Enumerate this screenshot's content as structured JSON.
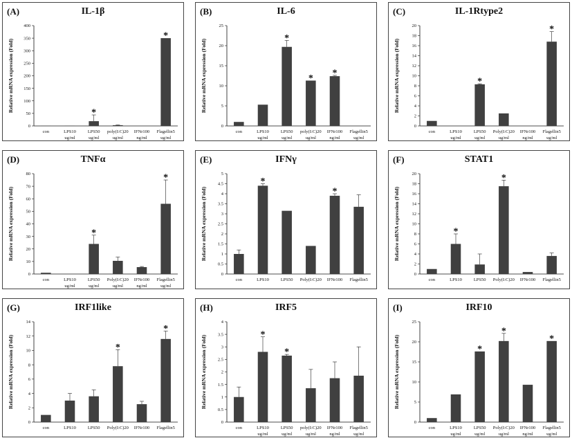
{
  "colors": {
    "bar": "#404040",
    "axis": "#111111",
    "frame": "#444444"
  },
  "chart_data": [
    {
      "type": "bar",
      "label": "(A)",
      "title": "IL-1β",
      "ylabel": "Relative mRNA expression (Fold)",
      "ylim": [
        0,
        400
      ],
      "yticks": [
        0,
        50,
        100,
        150,
        200,
        250,
        300,
        350,
        400
      ],
      "categories": [
        [
          "con"
        ],
        [
          "LPS10",
          "ug/ml"
        ],
        [
          "LPS50",
          "ug/ml"
        ],
        [
          "poly(I:C)20",
          "ug/ml"
        ],
        [
          "IFNr100",
          "ng/ml"
        ],
        [
          "Flagellin5",
          "ug/ml"
        ]
      ],
      "values": [
        0.5,
        0.8,
        19,
        3,
        0,
        350
      ],
      "errors": [
        0,
        0,
        25,
        1,
        0,
        0
      ],
      "significant": [
        false,
        false,
        true,
        false,
        false,
        true
      ]
    },
    {
      "type": "bar",
      "label": "(B)",
      "title": "IL-6",
      "ylabel": "Relative mRNA expression (Fold)",
      "ylim": [
        0,
        25
      ],
      "yticks": [
        0,
        5,
        10,
        15,
        20,
        25
      ],
      "categories": [
        [
          "con"
        ],
        [
          "LPS10",
          "ug/ml"
        ],
        [
          "LPS50",
          "ug/ml"
        ],
        [
          "poly(I:C)20",
          "ug/ml"
        ],
        [
          "IFNr100",
          "ng/ml"
        ],
        [
          "Flagellin5",
          "ug/ml"
        ]
      ],
      "values": [
        1,
        5.3,
        19.7,
        11.3,
        12.4,
        0
      ],
      "errors": [
        0,
        0,
        1.6,
        0,
        0.2,
        0
      ],
      "significant": [
        false,
        false,
        true,
        true,
        true,
        false
      ]
    },
    {
      "type": "bar",
      "label": "(C)",
      "title": "IL-1Rtype2",
      "ylabel": "Relative mRNA expression (Fold)",
      "ylim": [
        0,
        20
      ],
      "yticks": [
        0,
        2,
        4,
        6,
        8,
        10,
        12,
        14,
        16,
        18,
        20
      ],
      "categories": [
        [
          "con"
        ],
        [
          "LPS10",
          "ug/ml"
        ],
        [
          "LPS50",
          "ug/ml"
        ],
        [
          "Poly(I:C)20",
          "ug/ml"
        ],
        [
          "IFNr100",
          "ng/ml"
        ],
        [
          "Flagellin5",
          "ug/ml"
        ]
      ],
      "values": [
        1,
        0,
        8.3,
        2.5,
        0,
        16.8
      ],
      "errors": [
        0,
        0,
        0.1,
        0,
        0,
        2
      ],
      "significant": [
        false,
        false,
        true,
        false,
        false,
        true
      ]
    },
    {
      "type": "bar",
      "label": "(D)",
      "title": "TNFα",
      "ylabel": "Relative mRNA expression (Fold)",
      "ylim": [
        0,
        80
      ],
      "yticks": [
        0,
        10,
        20,
        30,
        40,
        50,
        60,
        70,
        80
      ],
      "categories": [
        [
          "con"
        ],
        [
          "LPS10",
          "ug/ml"
        ],
        [
          "LPS50",
          "ug/ml"
        ],
        [
          "Poly(I:C)20",
          "ug/ml"
        ],
        [
          "IFNr100",
          "ng/ml"
        ],
        [
          "Flagellin5",
          "ug/ml"
        ]
      ],
      "values": [
        1,
        0,
        24,
        10.5,
        5.5,
        56
      ],
      "errors": [
        0,
        0,
        7,
        3,
        0.5,
        19
      ],
      "significant": [
        false,
        false,
        true,
        false,
        false,
        true
      ]
    },
    {
      "type": "bar",
      "label": "(E)",
      "title": "IFNγ",
      "ylabel": "Relative mRNA expression (Fold)",
      "ylim": [
        0,
        5
      ],
      "yticks": [
        0,
        0.5,
        1,
        1.5,
        2,
        2.5,
        3,
        3.5,
        4,
        4.5,
        5
      ],
      "categories": [
        [
          "con"
        ],
        [
          "LPS10"
        ],
        [
          "LPS50"
        ],
        [
          "Poly(I:C)20"
        ],
        [
          "IFNr100"
        ],
        [
          "Flagellin5"
        ]
      ],
      "values": [
        1,
        4.4,
        3.15,
        1.4,
        3.9,
        3.35
      ],
      "errors": [
        0.2,
        0.1,
        0,
        0,
        0.1,
        0.6
      ],
      "significant": [
        false,
        true,
        false,
        false,
        true,
        false
      ]
    },
    {
      "type": "bar",
      "label": "(F)",
      "title": "STAT1",
      "ylabel": "Relative mRNA expression (Fold)",
      "ylim": [
        0,
        20
      ],
      "yticks": [
        0,
        2,
        4,
        6,
        8,
        10,
        12,
        14,
        16,
        18,
        20
      ],
      "categories": [
        [
          "con"
        ],
        [
          "LPS10"
        ],
        [
          "LPS50"
        ],
        [
          "Poly(I:C)20"
        ],
        [
          "IFNr100"
        ],
        [
          "Flagellin5"
        ]
      ],
      "values": [
        1,
        6,
        1.9,
        17.5,
        0.4,
        3.6
      ],
      "errors": [
        0,
        2,
        2.1,
        1.2,
        0,
        0.6
      ],
      "significant": [
        false,
        true,
        false,
        true,
        false,
        false
      ]
    },
    {
      "type": "bar",
      "label": "(G)",
      "title": "IRF1like",
      "ylabel": "Relative mRNA expression (Fold)",
      "ylim": [
        0,
        14
      ],
      "yticks": [
        0,
        2,
        4,
        6,
        8,
        10,
        12,
        14
      ],
      "categories": [
        [
          "con"
        ],
        [
          "LPS10"
        ],
        [
          "LPS50"
        ],
        [
          "Poly(I:C)20"
        ],
        [
          "IFNr100"
        ],
        [
          "Flagellin5"
        ]
      ],
      "values": [
        1,
        3,
        3.6,
        7.8,
        2.5,
        11.6
      ],
      "errors": [
        0,
        1,
        0.9,
        2.3,
        0.4,
        1.1
      ],
      "significant": [
        false,
        false,
        false,
        true,
        false,
        true
      ]
    },
    {
      "type": "bar",
      "label": "(H)",
      "title": "IRF5",
      "ylabel": "Relative mRNA expression (Fold)",
      "ylim": [
        0,
        4
      ],
      "yticks": [
        0,
        0.5,
        1,
        1.5,
        2,
        2.5,
        3,
        3.5,
        4
      ],
      "categories": [
        [
          "con"
        ],
        [
          "LPS10",
          "ug/ml"
        ],
        [
          "LPS50",
          "ug/ml"
        ],
        [
          "poly(I:C)20",
          "ug/ml"
        ],
        [
          "IFNr100",
          "ng/ml"
        ],
        [
          "Flagellin5",
          "ug/ml"
        ]
      ],
      "values": [
        1,
        2.8,
        2.65,
        1.35,
        1.75,
        1.85
      ],
      "errors": [
        0.4,
        0.6,
        0.05,
        0.75,
        0.65,
        1.15
      ],
      "significant": [
        false,
        true,
        true,
        false,
        false,
        false
      ]
    },
    {
      "type": "bar",
      "label": "(I)",
      "title": "IRF10",
      "ylabel": "Relative mRNA expression (Fold)",
      "ylim": [
        0,
        25
      ],
      "yticks": [
        0,
        5,
        10,
        15,
        20,
        25
      ],
      "categories": [
        [
          "con"
        ],
        [
          "LPS10",
          "ug/ml"
        ],
        [
          "LPS50",
          "ug/ml"
        ],
        [
          "Poly(I:C)20",
          "ug/ml"
        ],
        [
          "IFNr100",
          "ng/ml"
        ],
        [
          "Flagellin5",
          "ug/ml"
        ]
      ],
      "values": [
        1,
        6.9,
        17.6,
        20.2,
        9.3,
        20.2
      ],
      "errors": [
        0,
        0,
        0,
        1.9,
        0,
        0
      ],
      "significant": [
        false,
        false,
        true,
        true,
        false,
        true
      ]
    }
  ]
}
